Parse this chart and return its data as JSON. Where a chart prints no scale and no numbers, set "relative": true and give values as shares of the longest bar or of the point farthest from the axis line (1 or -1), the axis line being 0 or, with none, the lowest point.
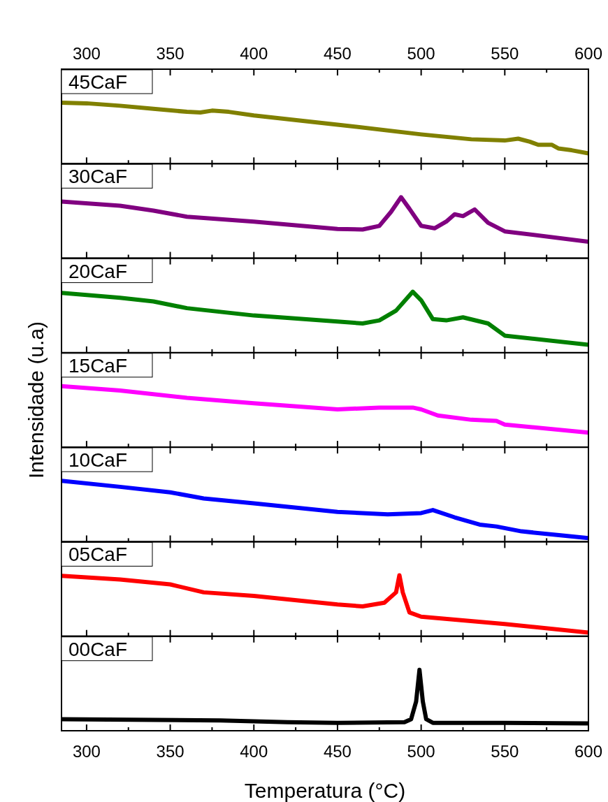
{
  "chart_data": [
    {
      "type": "line",
      "relative": true,
      "xlim": [
        285,
        600
      ],
      "xticks": [
        300,
        {
          "value": 325,
          "label": null
        },
        350,
        {
          "value": 375,
          "label": null
        },
        400,
        {
          "value": 425,
          "label": null
        },
        450,
        {
          "value": 475,
          "label": null
        },
        500,
        {
          "value": 525,
          "label": null
        },
        550,
        {
          "value": 575,
          "label": null
        },
        600
      ],
      "legend": "top left",
      "series": [
        {
          "name": "45CaF",
          "color": "#808000",
          "x": [
            285,
            300,
            320,
            340,
            360,
            368,
            375,
            385,
            400,
            450,
            500,
            530,
            550,
            558,
            565,
            570,
            578,
            582,
            590,
            600
          ],
          "values": [
            1,
            0.99,
            0.95,
            0.9,
            0.85,
            0.84,
            0.87,
            0.85,
            0.79,
            0.64,
            0.48,
            0.4,
            0.38,
            0.41,
            0.36,
            0.31,
            0.31,
            0.25,
            0.22,
            0.17
          ]
        }
      ]
    },
    {
      "type": "line",
      "relative": true,
      "xlim": [
        285,
        600
      ],
      "xticks": [
        300,
        {
          "value": 325,
          "label": null
        },
        350,
        {
          "value": 375,
          "label": null
        },
        400,
        {
          "value": 425,
          "label": null
        },
        450,
        {
          "value": 475,
          "label": null
        },
        500,
        {
          "value": 525,
          "label": null
        },
        550,
        {
          "value": 575,
          "label": null
        },
        600
      ],
      "tick_labels": false,
      "legend": "top left",
      "series": [
        {
          "name": "30CaF",
          "color": "#800080",
          "x": [
            285,
            320,
            340,
            360,
            400,
            450,
            465,
            475,
            482,
            488,
            493,
            500,
            508,
            515,
            520,
            525,
            532,
            540,
            550,
            600
          ],
          "values": [
            0.93,
            0.86,
            0.78,
            0.68,
            0.6,
            0.48,
            0.47,
            0.53,
            0.76,
            1,
            0.81,
            0.53,
            0.49,
            0.6,
            0.72,
            0.69,
            0.8,
            0.58,
            0.44,
            0.27
          ]
        }
      ]
    },
    {
      "type": "line",
      "relative": true,
      "xlim": [
        285,
        600
      ],
      "xticks": [
        300,
        {
          "value": 325,
          "label": null
        },
        350,
        {
          "value": 375,
          "label": null
        },
        400,
        {
          "value": 425,
          "label": null
        },
        450,
        {
          "value": 475,
          "label": null
        },
        500,
        {
          "value": 525,
          "label": null
        },
        550,
        {
          "value": 575,
          "label": null
        },
        600
      ],
      "tick_labels": false,
      "legend": "top left",
      "series": [
        {
          "name": "20CaF",
          "color": "#008000",
          "x": [
            285,
            320,
            340,
            360,
            400,
            450,
            465,
            475,
            485,
            495,
            500,
            507,
            515,
            525,
            540,
            550,
            600
          ],
          "values": [
            0.98,
            0.9,
            0.84,
            0.73,
            0.61,
            0.51,
            0.48,
            0.53,
            0.69,
            1,
            0.86,
            0.55,
            0.53,
            0.58,
            0.48,
            0.28,
            0.13
          ]
        }
      ]
    },
    {
      "type": "line",
      "relative": true,
      "ylabel": "Intensidade (u.a)",
      "xlim": [
        285,
        600
      ],
      "xticks": [
        300,
        {
          "value": 325,
          "label": null
        },
        350,
        {
          "value": 375,
          "label": null
        },
        400,
        {
          "value": 425,
          "label": null
        },
        450,
        {
          "value": 475,
          "label": null
        },
        500,
        {
          "value": 525,
          "label": null
        },
        550,
        {
          "value": 575,
          "label": null
        },
        600
      ],
      "tick_labels": false,
      "legend": "top left",
      "series": [
        {
          "name": "15CaF",
          "color": "#ff00ff",
          "x": [
            285,
            320,
            360,
            400,
            450,
            475,
            495,
            500,
            510,
            530,
            545,
            550,
            600
          ],
          "values": [
            1,
            0.93,
            0.81,
            0.72,
            0.62,
            0.65,
            0.65,
            0.62,
            0.52,
            0.45,
            0.43,
            0.37,
            0.24
          ]
        }
      ]
    },
    {
      "type": "line",
      "relative": true,
      "xlim": [
        285,
        600
      ],
      "xticks": [
        300,
        {
          "value": 325,
          "label": null
        },
        350,
        {
          "value": 375,
          "label": null
        },
        400,
        {
          "value": 425,
          "label": null
        },
        450,
        {
          "value": 475,
          "label": null
        },
        500,
        {
          "value": 525,
          "label": null
        },
        550,
        {
          "value": 575,
          "label": null
        },
        600
      ],
      "tick_labels": false,
      "legend": "top left",
      "series": [
        {
          "name": "10CaF",
          "color": "#0000ff",
          "x": [
            285,
            320,
            350,
            370,
            400,
            450,
            480,
            500,
            507,
            520,
            535,
            545,
            560,
            600
          ],
          "values": [
            1,
            0.9,
            0.81,
            0.71,
            0.63,
            0.49,
            0.45,
            0.47,
            0.52,
            0.4,
            0.28,
            0.25,
            0.17,
            0.06
          ]
        }
      ]
    },
    {
      "type": "line",
      "relative": true,
      "xlim": [
        285,
        600
      ],
      "xticks": [
        300,
        {
          "value": 325,
          "label": null
        },
        350,
        {
          "value": 375,
          "label": null
        },
        400,
        {
          "value": 425,
          "label": null
        },
        450,
        {
          "value": 475,
          "label": null
        },
        500,
        {
          "value": 525,
          "label": null
        },
        550,
        {
          "value": 575,
          "label": null
        },
        600
      ],
      "tick_labels": false,
      "legend": "top left",
      "series": [
        {
          "name": "05CaF",
          "color": "#ff0000",
          "x": [
            285,
            320,
            350,
            370,
            400,
            450,
            465,
            478,
            485,
            487,
            489,
            493,
            500,
            550,
            600
          ],
          "values": [
            0.99,
            0.93,
            0.85,
            0.72,
            0.66,
            0.52,
            0.49,
            0.55,
            0.72,
            1,
            0.72,
            0.39,
            0.32,
            0.2,
            0.06
          ]
        }
      ]
    },
    {
      "type": "line",
      "relative": true,
      "xlabel": "Temperatura (°C)",
      "xlim": [
        285,
        600
      ],
      "xticks": [
        300,
        {
          "value": 325,
          "label": null
        },
        350,
        {
          "value": 375,
          "label": null
        },
        400,
        {
          "value": 425,
          "label": null
        },
        450,
        {
          "value": 475,
          "label": null
        },
        500,
        {
          "value": 525,
          "label": null
        },
        550,
        {
          "value": 575,
          "label": null
        },
        600
      ],
      "tick_labels": "x",
      "legend": "top left",
      "series": [
        {
          "name": "00CaF",
          "color": "#000000",
          "x": [
            285,
            380,
            420,
            450,
            490,
            494,
            497,
            499,
            501,
            503,
            507,
            550,
            600
          ],
          "values": [
            0.19,
            0.17,
            0.14,
            0.13,
            0.14,
            0.19,
            0.48,
            1,
            0.48,
            0.19,
            0.13,
            0.13,
            0.12
          ]
        }
      ]
    }
  ]
}
